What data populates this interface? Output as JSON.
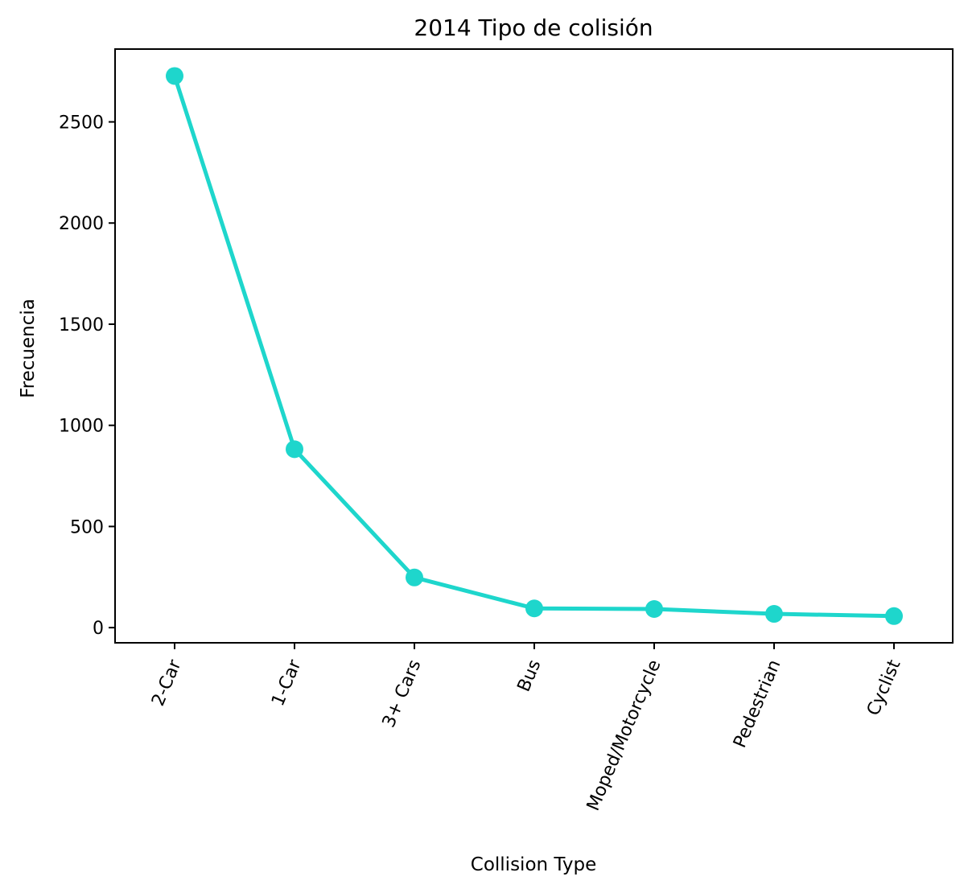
{
  "chart_data": {
    "type": "line",
    "title": "2014 Tipo de colisión",
    "xlabel": "Collision Type",
    "ylabel": "Frecuencia",
    "categories": [
      "2-Car",
      "1-Car",
      "3+ Cars",
      "Bus",
      "Moped/Motorcycle",
      "Pedestrian",
      "Cyclist"
    ],
    "series": [
      {
        "values": [
          2727,
          882,
          248,
          95,
          92,
          68,
          57
        ],
        "color": "#1ed6cc"
      }
    ],
    "ylim": [
      -75,
      2860
    ],
    "yticks": [
      0,
      500,
      1000,
      1500,
      2000,
      2500
    ],
    "grid": false,
    "legend": "none"
  }
}
